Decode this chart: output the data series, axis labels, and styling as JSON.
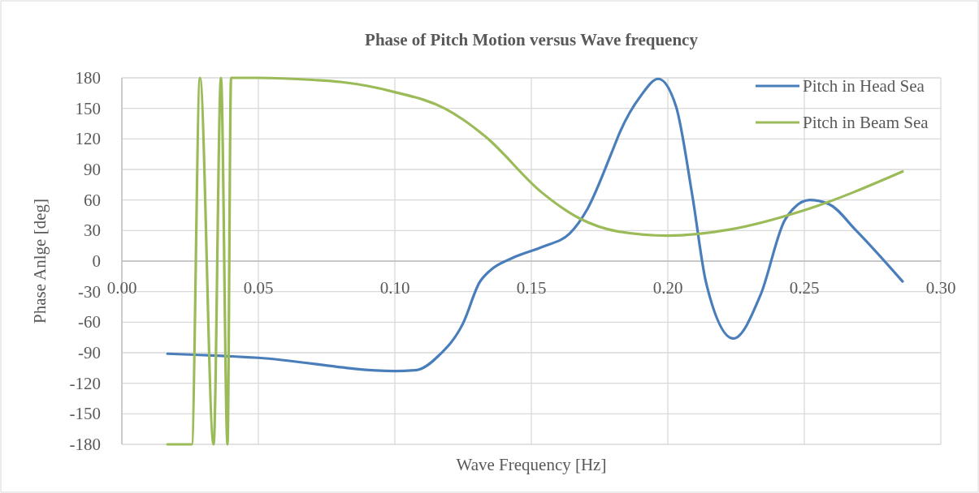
{
  "chart_data": {
    "type": "line",
    "title": "Phase of Pitch Motion versus Wave frequency",
    "xlabel": "Wave Frequency [Hz]",
    "ylabel": "Phase Anlge [deg]",
    "xlim": [
      0,
      0.3
    ],
    "xticks": [
      {
        "value": 0,
        "label": "0.00"
      },
      {
        "value": 0.05,
        "label": "0.05"
      },
      {
        "value": 0.1,
        "label": "0.10"
      },
      {
        "value": 0.15,
        "label": "0.15"
      },
      {
        "value": 0.2,
        "label": "0.20"
      },
      {
        "value": 0.25,
        "label": "0.25"
      },
      {
        "value": 0.3,
        "label": "0.30"
      }
    ],
    "ylim": [
      -180,
      180
    ],
    "yticks": [
      -180,
      -150,
      -120,
      -90,
      -60,
      -30,
      0,
      30,
      60,
      90,
      120,
      150,
      180
    ],
    "grid": true,
    "legend": "top right",
    "series": [
      {
        "name": "Pitch in Head Sea",
        "color": "#4a7ebb",
        "x": [
          0.0167,
          0.05,
          0.1,
          0.108,
          0.116,
          0.125,
          0.131,
          0.135,
          0.143,
          0.154,
          0.164,
          0.1705,
          0.1795,
          0.1825,
          0.19,
          0.1965,
          0.203,
          0.209,
          0.214,
          0.224,
          0.234,
          0.243,
          0.252,
          0.259,
          0.269,
          0.286
        ],
        "values": [
          -91,
          -95,
          -108,
          -107,
          -93,
          -61,
          -21,
          -9,
          3,
          14,
          27,
          51,
          107,
          127,
          162,
          179,
          152,
          64,
          -21,
          -76,
          -33,
          41,
          60,
          56,
          30,
          -20
        ]
      },
      {
        "name": "Pitch in Beam Sea",
        "color": "#9bbb59",
        "x": [
          0.0167,
          0.0256,
          0.0286,
          0.0336,
          0.0363,
          0.0387,
          0.04,
          0.05,
          0.07,
          0.08,
          0.09,
          0.1,
          0.1182,
          0.125,
          0.1333,
          0.154,
          0.1676,
          0.182,
          0.2,
          0.2226,
          0.25,
          0.286
        ],
        "values": [
          -180,
          -180,
          180,
          -180,
          180,
          -180,
          180,
          180,
          178,
          176,
          172,
          166,
          150,
          139,
          122,
          67,
          42,
          29,
          25,
          31,
          50,
          88
        ]
      }
    ]
  }
}
